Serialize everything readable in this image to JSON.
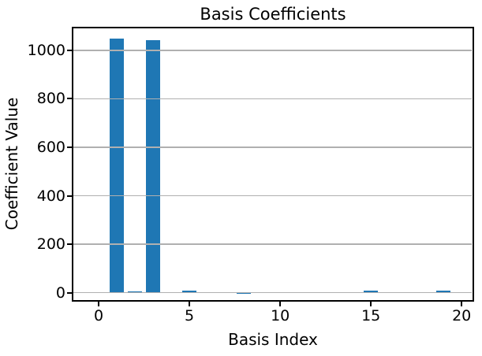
{
  "figure": {
    "background": "#ffffff",
    "text_color": "#000000"
  },
  "chart_data": {
    "type": "bar",
    "title": "Basis Coefficients",
    "xlabel": "Basis Index",
    "ylabel": "Coefficient Value",
    "categories": [
      0,
      1,
      2,
      3,
      4,
      5,
      6,
      7,
      8,
      9,
      10,
      11,
      12,
      13,
      14,
      15,
      16,
      17,
      18,
      19
    ],
    "values": [
      0,
      1049,
      6,
      1042,
      0,
      7,
      0,
      0,
      -6,
      0,
      0,
      0,
      0,
      0,
      0,
      9,
      0,
      0,
      0,
      9
    ],
    "bar_color": "#1f77b4",
    "bar_width": 0.8,
    "xticks": [
      0,
      5,
      10,
      15,
      20
    ],
    "yticks": [
      0,
      200,
      400,
      600,
      800,
      1000
    ],
    "xlim": [
      -1.44,
      20.6
    ],
    "ylim": [
      -34,
      1094
    ],
    "grid": {
      "axis": "y",
      "color": "#b0b0b0",
      "above_bars": true
    },
    "legend": "none",
    "spine_color": "#000000"
  }
}
